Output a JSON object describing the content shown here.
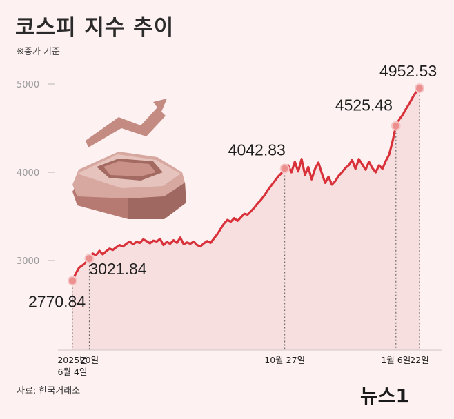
{
  "header": {
    "title": "코스피 지수 추이",
    "subtitle": "※종가 기준"
  },
  "footer": {
    "source": "자료: 한국거래소",
    "watermark": "뉴스1"
  },
  "colors": {
    "line": "#d8313a",
    "area": "#f7dcdc",
    "marker": "#ec8f8f",
    "background": "#fdf1f1"
  },
  "icon": "stock-exchange-building-rising-arrow-icon",
  "chart_data": {
    "type": "line",
    "title": "코스피 지수 추이",
    "subtitle": "※종가 기준",
    "ylim": [
      2500,
      5200
    ],
    "yticks": [
      3000,
      4000,
      5000
    ],
    "ytick_labels": [
      "3000",
      "4000",
      "5000"
    ],
    "grid": false,
    "series": [
      {
        "values": [
          2770.84,
          2855,
          2920,
          2947,
          2980,
          3021.84,
          3080,
          3060,
          3110,
          3070,
          3105,
          3135,
          3120,
          3150,
          3175,
          3160,
          3190,
          3215,
          3185,
          3210,
          3200,
          3240,
          3220,
          3195,
          3225,
          3215,
          3245,
          3175,
          3210,
          3190,
          3230,
          3200,
          3260,
          3185,
          3205,
          3190,
          3215,
          3175,
          3160,
          3195,
          3220,
          3200,
          3250,
          3300,
          3360,
          3420,
          3460,
          3440,
          3480,
          3450,
          3490,
          3530,
          3520,
          3560,
          3600,
          3650,
          3690,
          3740,
          3800,
          3850,
          3900,
          3950,
          3990,
          4042.83,
          4080,
          4000,
          4120,
          4010,
          4150,
          3970,
          4060,
          3920,
          4040,
          4110,
          3990,
          3880,
          3950,
          3860,
          3900,
          3960,
          4000,
          4050,
          4080,
          4140,
          4040,
          4150,
          4090,
          4030,
          4120,
          4050,
          4000,
          4080,
          4040,
          4130,
          4200,
          4350,
          4525.48,
          4600,
          4650,
          4720,
          4780,
          4850,
          4910,
          4952.53
        ],
        "highlights": [
          {
            "index": 0,
            "value": "2770.84",
            "date": "2025년 6월 4일"
          },
          {
            "index": 5,
            "value": "3021.84",
            "date": "20일"
          },
          {
            "index": 63,
            "value": "4042.83",
            "date": "10월 27일"
          },
          {
            "index": 96,
            "value": "4525.48",
            "date": "1월 6일"
          },
          {
            "index": 103,
            "value": "4952.53",
            "date": "22일"
          }
        ]
      }
    ],
    "x_labels": [
      {
        "index": 0,
        "lines": [
          "2025년",
          "6월 4일"
        ]
      },
      {
        "index": 5,
        "lines": [
          "20일"
        ]
      },
      {
        "index": 63,
        "lines": [
          "10월 27일"
        ]
      },
      {
        "index": 96,
        "lines": [
          "1월 6일"
        ]
      },
      {
        "index": 103,
        "lines": [
          "22일"
        ]
      }
    ]
  }
}
